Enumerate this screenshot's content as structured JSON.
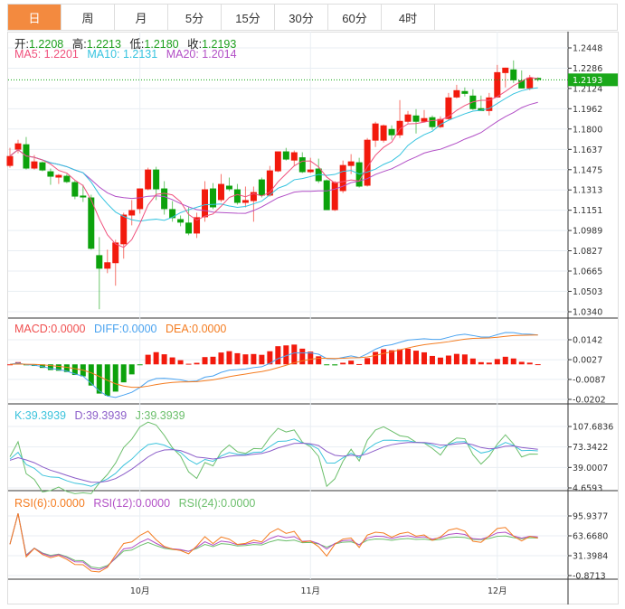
{
  "tabs": [
    {
      "label": "日",
      "active": true
    },
    {
      "label": "周"
    },
    {
      "label": "月"
    },
    {
      "label": "5分"
    },
    {
      "label": "15分"
    },
    {
      "label": "30分"
    },
    {
      "label": "60分"
    },
    {
      "label": "4时"
    }
  ],
  "ohlc_legend": {
    "open_label": "开:",
    "open": "1.2208",
    "high_label": "高:",
    "high": "1.2213",
    "low_label": "低:",
    "low": "1.2180",
    "close_label": "收:",
    "close": "1.2193"
  },
  "ma_legend": {
    "ma5": "MA5: 1.2201",
    "ma10": "MA10: 1.2131",
    "ma20": "MA20: 1.2014"
  },
  "macd_legend": {
    "macd": "MACD:0.0000",
    "diff": "DIFF:0.0000",
    "dea": "DEA:0.0000"
  },
  "kdj_legend": {
    "k": "K:39.3939",
    "d": "D:39.3939",
    "j": "J:39.3939"
  },
  "rsi_legend": {
    "rsi6": "RSI(6):0.0000",
    "rsi12": "RSI(12):0.0000",
    "rsi24": "RSI(24):0.0000"
  },
  "current_price": "1.2193",
  "colors": {
    "up": "#f21a0d",
    "down": "#0ca20c",
    "ma5": "#f0517d",
    "ma10": "#34c3df",
    "ma20": "#b24fc6",
    "diff": "#4aa3f0",
    "dea": "#f47c20",
    "k": "#3bc3dc",
    "d": "#8c5ec9",
    "j": "#6cbf6c",
    "rsi6": "#f47c20",
    "rsi12": "#b24fc6",
    "rsi24": "#6cbf6c",
    "accent": "#f38a3f"
  },
  "chart_data": {
    "type": "candlestick",
    "price_axis": {
      "ticks": [
        "1.2448",
        "1.2286",
        "1.2124",
        "1.1962",
        "1.1800",
        "1.1637",
        "1.1475",
        "1.1313",
        "1.1151",
        "1.0989",
        "1.0827",
        "1.0665",
        "1.0503",
        "1.0340"
      ],
      "range": [
        1.034,
        1.2448
      ]
    },
    "macd_axis": {
      "ticks": [
        "0.0142",
        "0.0027",
        "-0.0087",
        "-0.0202"
      ],
      "range": [
        -0.0202,
        0.0142
      ]
    },
    "kdj_axis": {
      "ticks": [
        "107.6836",
        "73.3422",
        "39.0007",
        "4.6593"
      ],
      "range": [
        4.6593,
        107.6836
      ]
    },
    "rsi_axis": {
      "ticks": [
        "95.9377",
        "63.6680",
        "31.3984",
        "-0.8713"
      ],
      "range": [
        -0.8713,
        95.9377
      ]
    },
    "x_labels": [
      {
        "label": "10月",
        "index": 16
      },
      {
        "label": "11月",
        "index": 37
      },
      {
        "label": "12月",
        "index": 60
      }
    ],
    "candles": [
      [
        1.1505,
        1.1649,
        1.1491,
        1.1584
      ],
      [
        1.1635,
        1.1714,
        1.1606,
        1.1685
      ],
      [
        1.1678,
        1.1736,
        1.1476,
        1.1484
      ],
      [
        1.1484,
        1.1592,
        1.1476,
        1.1541
      ],
      [
        1.1534,
        1.1541,
        1.1462,
        1.1469
      ],
      [
        1.1462,
        1.1484,
        1.1354,
        1.1419
      ],
      [
        1.1412,
        1.144,
        1.1361,
        1.1433
      ],
      [
        1.1426,
        1.144,
        1.1368,
        1.1376
      ],
      [
        1.1376,
        1.139,
        1.1239,
        1.126
      ],
      [
        1.1268,
        1.1354,
        1.1217,
        1.1253
      ],
      [
        1.1253,
        1.1275,
        1.0836,
        1.0843
      ],
      [
        1.0792,
        1.0936,
        1.036,
        1.0684
      ],
      [
        1.0684,
        1.0836,
        1.0648,
        1.0735
      ],
      [
        1.0728,
        1.0915,
        1.0548,
        1.0893
      ],
      [
        1.0879,
        1.1131,
        1.0764,
        1.1116
      ],
      [
        1.1109,
        1.1232,
        1.103,
        1.1152
      ],
      [
        1.116,
        1.1325,
        1.1124,
        1.1325
      ],
      [
        1.1318,
        1.1491,
        1.1311,
        1.1476
      ],
      [
        1.1476,
        1.1498,
        1.1232,
        1.1318
      ],
      [
        1.1325,
        1.1383,
        1.1116,
        1.116
      ],
      [
        1.116,
        1.1224,
        1.1059,
        1.1088
      ],
      [
        1.108,
        1.1109,
        1.1023,
        1.1052
      ],
      [
        1.1052,
        1.1174,
        1.0951,
        1.0965
      ],
      [
        1.0965,
        1.1131,
        1.0929,
        1.1095
      ],
      [
        1.1095,
        1.1383,
        1.1059,
        1.1318
      ],
      [
        1.1325,
        1.1368,
        1.116,
        1.1174
      ],
      [
        1.1232,
        1.144,
        1.1217,
        1.1361
      ],
      [
        1.1347,
        1.1412,
        1.1304,
        1.1318
      ],
      [
        1.1318,
        1.1361,
        1.1196,
        1.121
      ],
      [
        1.121,
        1.134,
        1.1174,
        1.1232
      ],
      [
        1.1224,
        1.134,
        1.1059,
        1.1296
      ],
      [
        1.1397,
        1.1412,
        1.1253,
        1.1268
      ],
      [
        1.1268,
        1.1505,
        1.126,
        1.1469
      ],
      [
        1.1462,
        1.1621,
        1.1455,
        1.1621
      ],
      [
        1.1621,
        1.1649,
        1.1548,
        1.1556
      ],
      [
        1.1548,
        1.1628,
        1.1505,
        1.1614
      ],
      [
        1.1574,
        1.1614,
        1.1448,
        1.1455
      ],
      [
        1.1455,
        1.157,
        1.1448,
        1.1476
      ],
      [
        1.1484,
        1.1563,
        1.1368,
        1.1383
      ],
      [
        1.139,
        1.1397,
        1.1152,
        1.1152
      ],
      [
        1.1152,
        1.1383,
        1.1145,
        1.1376
      ],
      [
        1.1304,
        1.1548,
        1.1289,
        1.1512
      ],
      [
        1.1505,
        1.1599,
        1.144,
        1.1541
      ],
      [
        1.1534,
        1.157,
        1.1332,
        1.134
      ],
      [
        1.1347,
        1.1728,
        1.134,
        1.1714
      ],
      [
        1.1707,
        1.1858,
        1.1656,
        1.1844
      ],
      [
        1.1707,
        1.1836,
        1.1692,
        1.1829
      ],
      [
        1.18,
        1.1829,
        1.1714,
        1.175
      ],
      [
        1.175,
        1.2031,
        1.1728,
        1.1865
      ],
      [
        1.1858,
        1.1944,
        1.1844,
        1.1916
      ],
      [
        1.1908,
        1.1959,
        1.1764,
        1.1858
      ],
      [
        1.1858,
        1.1952,
        1.1851,
        1.1887
      ],
      [
        1.1894,
        1.1908,
        1.1793,
        1.1815
      ],
      [
        1.1815,
        1.1901,
        1.1808,
        1.188
      ],
      [
        1.188,
        1.2088,
        1.1872,
        1.2052
      ],
      [
        1.2052,
        1.2153,
        1.2045,
        1.211
      ],
      [
        1.2103,
        1.2132,
        1.206,
        1.2081
      ],
      [
        1.2067,
        1.2117,
        1.1952,
        1.1959
      ],
      [
        1.1966,
        1.2067,
        1.1944,
        1.1944
      ],
      [
        1.1944,
        1.2088,
        1.1908,
        1.2052
      ],
      [
        1.2052,
        1.2312,
        1.2052,
        1.2254
      ],
      [
        1.2247,
        1.229,
        1.2132,
        1.229
      ],
      [
        1.2276,
        1.2348,
        1.2168,
        1.2189
      ],
      [
        1.2189,
        1.2268,
        1.2124,
        1.2124
      ],
      [
        1.2124,
        1.2232,
        1.211,
        1.2211
      ],
      [
        1.2208,
        1.2213,
        1.218,
        1.2193
      ]
    ]
  }
}
